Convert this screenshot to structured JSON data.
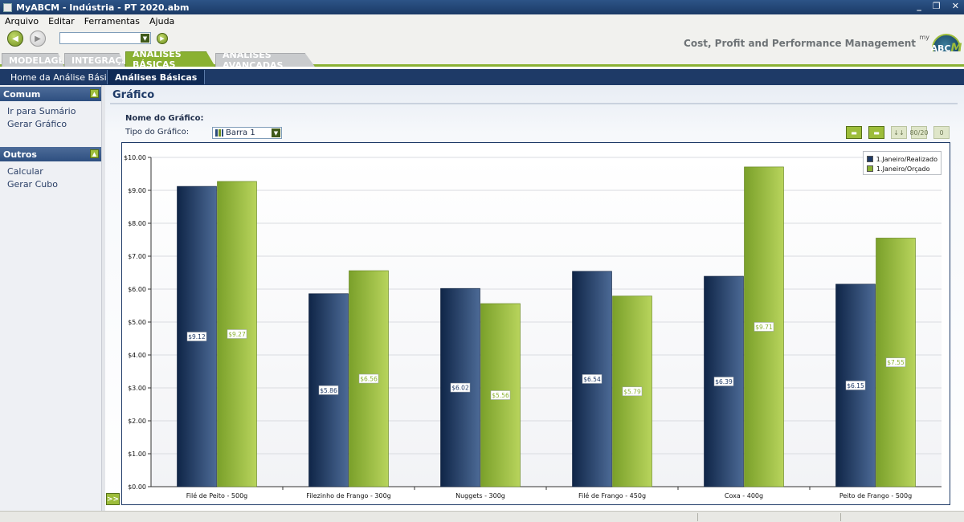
{
  "window": {
    "title": "MyABCM - Indústria - PT 2020.abm",
    "minimize": "_",
    "restore": "❐",
    "close": "✕"
  },
  "menu": [
    "Arquivo",
    "Editar",
    "Ferramentas",
    "Ajuda"
  ],
  "toolbar": {
    "combo_value": "",
    "brand": "Cost, Profit and Performance Management",
    "brand_my": "my",
    "logo_text": "ABC",
    "logo_accent": "M"
  },
  "main_tabs": [
    "MODELAGEM",
    "INTEGRAÇÃO",
    "ANÁLISES BÁSICAS",
    "ANÁLISES AVANÇADAS"
  ],
  "main_tabs_active": "ANÁLISES BÁSICAS",
  "sub_tabs": [
    "Home da Análise Básica",
    "Análises Básicas"
  ],
  "sidebar": {
    "sections": [
      {
        "title": "Comum",
        "items": [
          "Ir para Sumário",
          "Gerar Gráfico"
        ]
      },
      {
        "title": "Outros",
        "items": [
          "Calcular",
          "Gerar Cubo"
        ]
      }
    ],
    "expand": ">>"
  },
  "page": {
    "title": "Gráfico",
    "name_label": "Nome do Gráfico:",
    "type_label": "Tipo do Gráfico:",
    "type_value": "Barra 1",
    "tools": [
      "▬",
      "▬",
      "↓↓",
      "80/20",
      "0"
    ]
  },
  "colors": {
    "realizado": "#1f3a66",
    "orcado": "#8ab132",
    "accent": "#8ab132",
    "nav": "#1e3a67"
  },
  "chart_data": {
    "type": "bar",
    "categories": [
      "Filé de Peito - 500g",
      "Filezinho de Frango - 300g",
      "Nuggets - 300g",
      "Filé de Frango - 450g",
      "Coxa - 400g",
      "Peito de Frango - 500g"
    ],
    "series": [
      {
        "name": "1.Janeiro/Realizado",
        "values": [
          9.12,
          5.86,
          6.02,
          6.54,
          6.39,
          6.15
        ],
        "labels": [
          "$9.12",
          "$5.86",
          "$6.02",
          "$6.54",
          "$6.39",
          "$6.15"
        ]
      },
      {
        "name": "1.Janeiro/Orçado",
        "values": [
          9.27,
          6.56,
          5.56,
          5.79,
          9.71,
          7.55
        ],
        "labels": [
          "$9.27",
          "$6.56",
          "$5.56",
          "$5.79",
          "$9.71",
          "$7.55"
        ]
      }
    ],
    "y_ticks": [
      "$0.00",
      "$1.00",
      "$2.00",
      "$3.00",
      "$4.00",
      "$5.00",
      "$6.00",
      "$7.00",
      "$8.00",
      "$9.00",
      "$10.00"
    ],
    "ylim": [
      0,
      10
    ],
    "grid": true,
    "legend_position": "top-right"
  }
}
